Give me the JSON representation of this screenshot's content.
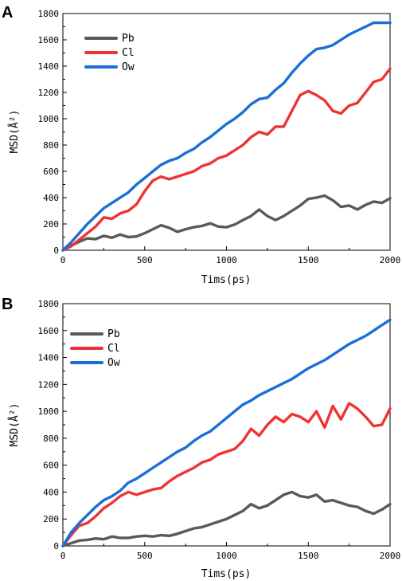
{
  "panels": [
    {
      "letter": "A",
      "ylabel": "MSD(Å²)",
      "xlabel": "Tims(ps)"
    },
    {
      "letter": "B",
      "ylabel": "MSD(Å²)",
      "xlabel": "Tims(ps)"
    }
  ],
  "chart_data": [
    {
      "type": "line",
      "panel": "A",
      "xlabel": "Tims(ps)",
      "ylabel": "MSD(Å²)",
      "xlim": [
        0,
        2000
      ],
      "ylim": [
        0,
        1800
      ],
      "xticks": [
        0,
        500,
        1000,
        1500,
        2000
      ],
      "yticks": [
        0,
        200,
        400,
        600,
        800,
        1000,
        1200,
        1400,
        1600,
        1800
      ],
      "grid": false,
      "legend_position": "top-left",
      "series": [
        {
          "name": "Pb",
          "color": "#595959",
          "x": [
            0,
            50,
            100,
            150,
            200,
            250,
            300,
            350,
            400,
            450,
            500,
            550,
            600,
            650,
            700,
            750,
            800,
            850,
            900,
            950,
            1000,
            1050,
            1100,
            1150,
            1200,
            1250,
            1300,
            1350,
            1400,
            1450,
            1500,
            1550,
            1600,
            1650,
            1700,
            1750,
            1800,
            1850,
            1900,
            1950,
            2000
          ],
          "y": [
            0,
            35,
            65,
            90,
            85,
            110,
            95,
            120,
            100,
            105,
            130,
            160,
            190,
            170,
            140,
            160,
            175,
            185,
            205,
            180,
            175,
            195,
            230,
            260,
            310,
            260,
            230,
            260,
            300,
            340,
            390,
            400,
            415,
            380,
            330,
            340,
            310,
            345,
            370,
            360,
            395
          ]
        },
        {
          "name": "Cl",
          "color": "#f03232",
          "x": [
            0,
            50,
            100,
            150,
            200,
            250,
            300,
            350,
            400,
            450,
            500,
            550,
            600,
            650,
            700,
            750,
            800,
            850,
            900,
            950,
            1000,
            1050,
            1100,
            1150,
            1200,
            1250,
            1300,
            1350,
            1400,
            1450,
            1500,
            1550,
            1600,
            1650,
            1700,
            1750,
            1800,
            1850,
            1900,
            1950,
            2000
          ],
          "y": [
            0,
            30,
            80,
            130,
            180,
            250,
            240,
            280,
            300,
            350,
            450,
            530,
            560,
            540,
            560,
            580,
            600,
            640,
            660,
            700,
            720,
            760,
            800,
            860,
            900,
            880,
            940,
            940,
            1060,
            1180,
            1210,
            1180,
            1140,
            1060,
            1040,
            1100,
            1120,
            1200,
            1280,
            1300,
            1380
          ]
        },
        {
          "name": "Ow",
          "color": "#1a6fd6",
          "x": [
            0,
            50,
            100,
            150,
            200,
            250,
            300,
            350,
            400,
            450,
            500,
            550,
            600,
            650,
            700,
            750,
            800,
            850,
            900,
            950,
            1000,
            1050,
            1100,
            1150,
            1200,
            1250,
            1300,
            1350,
            1400,
            1450,
            1500,
            1550,
            1600,
            1650,
            1700,
            1750,
            1800,
            1850,
            1900,
            1950,
            2000
          ],
          "y": [
            0,
            60,
            130,
            200,
            260,
            320,
            360,
            400,
            440,
            500,
            550,
            600,
            650,
            680,
            700,
            740,
            770,
            820,
            860,
            910,
            960,
            1000,
            1050,
            1110,
            1150,
            1160,
            1220,
            1270,
            1350,
            1420,
            1480,
            1530,
            1540,
            1560,
            1600,
            1640,
            1670,
            1700,
            1730,
            1730,
            1730
          ]
        }
      ]
    },
    {
      "type": "line",
      "panel": "B",
      "xlabel": "Tims(ps)",
      "ylabel": "MSD(Å²)",
      "xlim": [
        0,
        2000
      ],
      "ylim": [
        0,
        1800
      ],
      "xticks": [
        0,
        500,
        1000,
        1500,
        2000
      ],
      "yticks": [
        0,
        200,
        400,
        600,
        800,
        1000,
        1200,
        1400,
        1600,
        1800
      ],
      "grid": false,
      "legend_position": "top-left",
      "series": [
        {
          "name": "Pb",
          "color": "#595959",
          "x": [
            0,
            50,
            100,
            150,
            200,
            250,
            300,
            350,
            400,
            450,
            500,
            550,
            600,
            650,
            700,
            750,
            800,
            850,
            900,
            950,
            1000,
            1050,
            1100,
            1150,
            1200,
            1250,
            1300,
            1350,
            1400,
            1450,
            1500,
            1550,
            1600,
            1650,
            1700,
            1750,
            1800,
            1850,
            1900,
            1950,
            2000
          ],
          "y": [
            0,
            20,
            40,
            45,
            55,
            50,
            70,
            60,
            60,
            70,
            75,
            70,
            80,
            75,
            90,
            110,
            130,
            140,
            160,
            180,
            200,
            230,
            260,
            310,
            280,
            300,
            340,
            380,
            400,
            370,
            360,
            380,
            330,
            340,
            320,
            300,
            290,
            260,
            240,
            270,
            310
          ]
        },
        {
          "name": "Cl",
          "color": "#f03232",
          "x": [
            0,
            50,
            100,
            150,
            200,
            250,
            300,
            350,
            400,
            450,
            500,
            550,
            600,
            650,
            700,
            750,
            800,
            850,
            900,
            950,
            1000,
            1050,
            1100,
            1150,
            1200,
            1250,
            1300,
            1350,
            1400,
            1450,
            1500,
            1550,
            1600,
            1650,
            1700,
            1750,
            1800,
            1850,
            1900,
            1950,
            2000
          ],
          "y": [
            0,
            80,
            150,
            170,
            220,
            280,
            320,
            370,
            400,
            380,
            400,
            420,
            430,
            480,
            520,
            550,
            580,
            620,
            640,
            680,
            700,
            720,
            780,
            870,
            820,
            900,
            960,
            920,
            980,
            960,
            920,
            1000,
            880,
            1040,
            940,
            1060,
            1020,
            960,
            890,
            900,
            1020
          ]
        },
        {
          "name": "Ow",
          "color": "#1a6fd6",
          "x": [
            0,
            50,
            100,
            150,
            200,
            250,
            300,
            350,
            400,
            450,
            500,
            550,
            600,
            650,
            700,
            750,
            800,
            850,
            900,
            950,
            1000,
            1050,
            1100,
            1150,
            1200,
            1250,
            1300,
            1350,
            1400,
            1450,
            1500,
            1550,
            1600,
            1650,
            1700,
            1750,
            1800,
            1850,
            1900,
            1950,
            2000
          ],
          "y": [
            0,
            100,
            170,
            230,
            290,
            340,
            370,
            410,
            470,
            500,
            540,
            580,
            620,
            660,
            700,
            730,
            780,
            820,
            850,
            900,
            950,
            1000,
            1050,
            1080,
            1120,
            1150,
            1180,
            1210,
            1240,
            1280,
            1320,
            1350,
            1380,
            1420,
            1460,
            1500,
            1530,
            1560,
            1600,
            1640,
            1680
          ]
        }
      ]
    }
  ]
}
